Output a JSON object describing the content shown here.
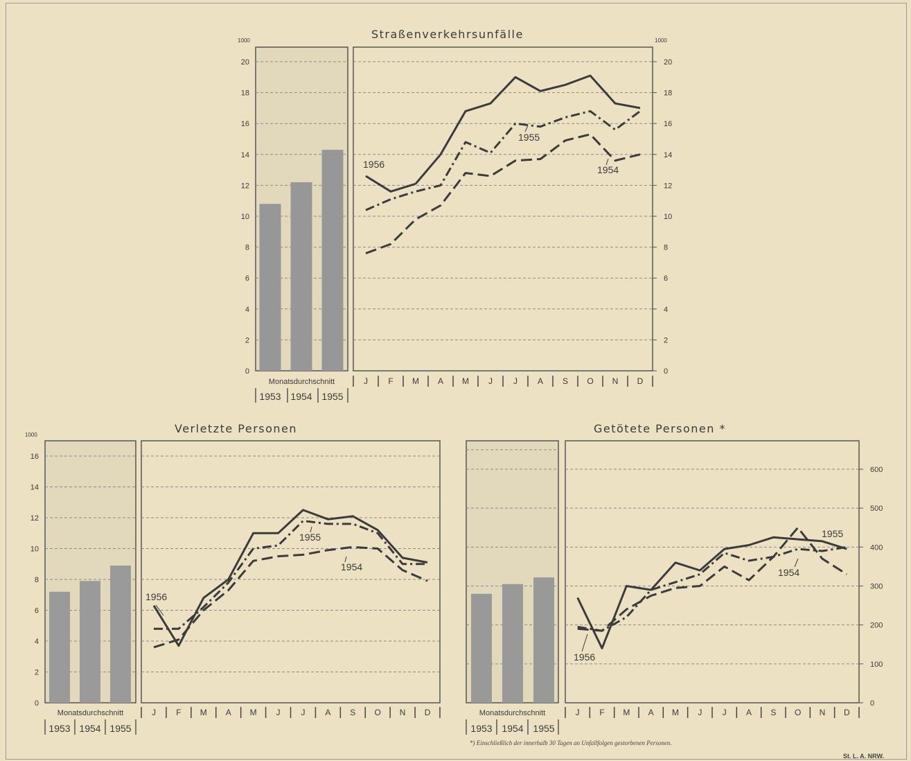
{
  "source_label": "St. L. A. NRW.",
  "footnote": "*) Einschließlich der innerhalb 30 Tagen an Unfallfolgen gestorbenen Personen.",
  "chart_data": [
    {
      "type": "bar",
      "name": "strassenverkehrsunfaelle-averages",
      "unit": "1000",
      "caption": "Monatsdurchschnitt",
      "categories": [
        "1953",
        "1954",
        "1955"
      ],
      "values": [
        10.8,
        12.2,
        14.3
      ],
      "ylim": [
        0,
        20
      ],
      "yticks": [
        0,
        2,
        4,
        6,
        8,
        10,
        12,
        14,
        16,
        18,
        20
      ]
    },
    {
      "type": "line",
      "name": "strassenverkehrsunfaelle-monthly",
      "title": "Straßenverkehrsunfälle",
      "unit": "1000",
      "categories": [
        "J",
        "F",
        "M",
        "A",
        "M",
        "J",
        "J",
        "A",
        "S",
        "O",
        "N",
        "D"
      ],
      "ylim": [
        0,
        20
      ],
      "yticks": [
        0,
        2,
        4,
        6,
        8,
        10,
        12,
        14,
        16,
        18,
        20
      ],
      "grid": true,
      "series": [
        {
          "name": "1956",
          "style": "solid",
          "values": [
            12.6,
            11.6,
            12.1,
            null,
            null,
            null,
            null,
            null,
            null,
            null,
            null,
            null
          ]
        },
        {
          "name": "1956",
          "style": "solid",
          "values": [
            null,
            null,
            12.1,
            14.0,
            16.8,
            17.3,
            19.0,
            18.1,
            18.5,
            19.1,
            17.3,
            17.0
          ]
        },
        {
          "name": "1955",
          "style": "dashdot",
          "values": [
            10.4,
            11.1,
            11.6,
            12.0,
            14.8,
            14.1,
            16.0,
            15.8,
            16.4,
            16.8,
            15.6,
            16.8
          ]
        },
        {
          "name": "1954",
          "style": "dashed",
          "values": [
            7.6,
            8.2,
            9.8,
            10.7,
            12.8,
            12.6,
            13.6,
            13.7,
            14.9,
            15.3,
            13.6,
            14.0
          ]
        }
      ],
      "labels": [
        "1956",
        "1955",
        "1954"
      ]
    },
    {
      "type": "bar",
      "name": "verletzte-personen-averages",
      "unit": "1000",
      "caption": "Monatsdurchschnitt",
      "categories": [
        "1953",
        "1954",
        "1955"
      ],
      "values": [
        7.2,
        7.9,
        8.9
      ],
      "ylim": [
        0,
        16
      ],
      "yticks": [
        0,
        2,
        4,
        6,
        8,
        10,
        12,
        14,
        16
      ]
    },
    {
      "type": "line",
      "name": "verletzte-personen-monthly",
      "title": "Verletzte Personen",
      "categories": [
        "J",
        "F",
        "M",
        "A",
        "M",
        "J",
        "J",
        "A",
        "S",
        "O",
        "N",
        "D"
      ],
      "ylim": [
        0,
        16
      ],
      "grid": true,
      "series": [
        {
          "name": "1956",
          "style": "solid",
          "values": [
            6.3,
            3.7,
            6.8,
            8.0,
            11.0,
            11.0,
            12.5,
            11.9,
            12.1,
            11.2,
            9.4,
            9.1
          ]
        },
        {
          "name": "1955",
          "style": "dashdot",
          "values": [
            4.8,
            4.8,
            6.2,
            7.8,
            10.0,
            10.2,
            11.8,
            11.6,
            11.6,
            11.0,
            9.0,
            9.0
          ]
        },
        {
          "name": "1954",
          "style": "dashed",
          "values": [
            3.6,
            4.1,
            6.0,
            7.3,
            9.2,
            9.5,
            9.6,
            9.9,
            10.1,
            10.0,
            8.6,
            7.9
          ]
        }
      ],
      "labels": [
        "1956",
        "1955",
        "1954"
      ]
    },
    {
      "type": "bar",
      "name": "getoetete-personen-averages",
      "caption": "Monatsdurchschnitt",
      "categories": [
        "1953",
        "1954",
        "1955"
      ],
      "values": [
        280,
        305,
        322
      ],
      "ylim": [
        0,
        700
      ]
    },
    {
      "type": "line",
      "name": "getoetete-personen-monthly",
      "title": "Getötete Personen *",
      "categories": [
        "J",
        "F",
        "M",
        "A",
        "M",
        "J",
        "J",
        "A",
        "S",
        "O",
        "N",
        "D"
      ],
      "ylim": [
        0,
        700
      ],
      "yticks": [
        0,
        100,
        200,
        300,
        400,
        500,
        600
      ],
      "grid": true,
      "series": [
        {
          "name": "1956",
          "style": "solid",
          "values": [
            270,
            140,
            300,
            290,
            360,
            340,
            395,
            405,
            425,
            420,
            415,
            395
          ]
        },
        {
          "name": "1955",
          "style": "dashdot",
          "values": [
            195,
            185,
            220,
            290,
            310,
            330,
            385,
            365,
            375,
            395,
            390,
            400
          ]
        },
        {
          "name": "1954",
          "style": "dashed",
          "values": [
            190,
            185,
            240,
            275,
            295,
            300,
            350,
            315,
            375,
            450,
            370,
            330
          ]
        }
      ],
      "labels": [
        "1956",
        "1955",
        "1954"
      ]
    }
  ]
}
